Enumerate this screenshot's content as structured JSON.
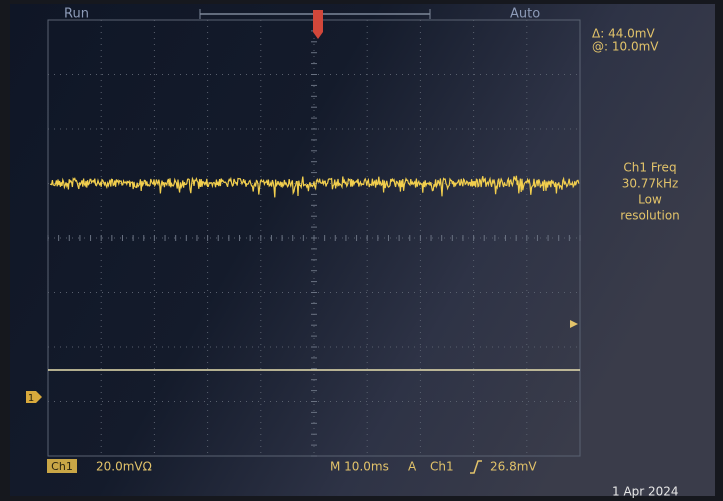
{
  "status": {
    "run": "Run",
    "mode": "Auto"
  },
  "cursors": {
    "delta": "Δ: 44.0mV",
    "at": "@: 10.0mV"
  },
  "measurement": {
    "label": "Ch1 Freq",
    "value": "30.77kHz",
    "note_lines": [
      "Low",
      "resolution"
    ]
  },
  "channel": {
    "badge": "Ch1",
    "scale": "20.0mVΩ",
    "marker": "1"
  },
  "timebase": {
    "scale": "M 10.0ms",
    "trigger_mode": "A",
    "trigger_source": "Ch1",
    "trigger_level": "26.8mV"
  },
  "date": "1 Apr 2024"
}
